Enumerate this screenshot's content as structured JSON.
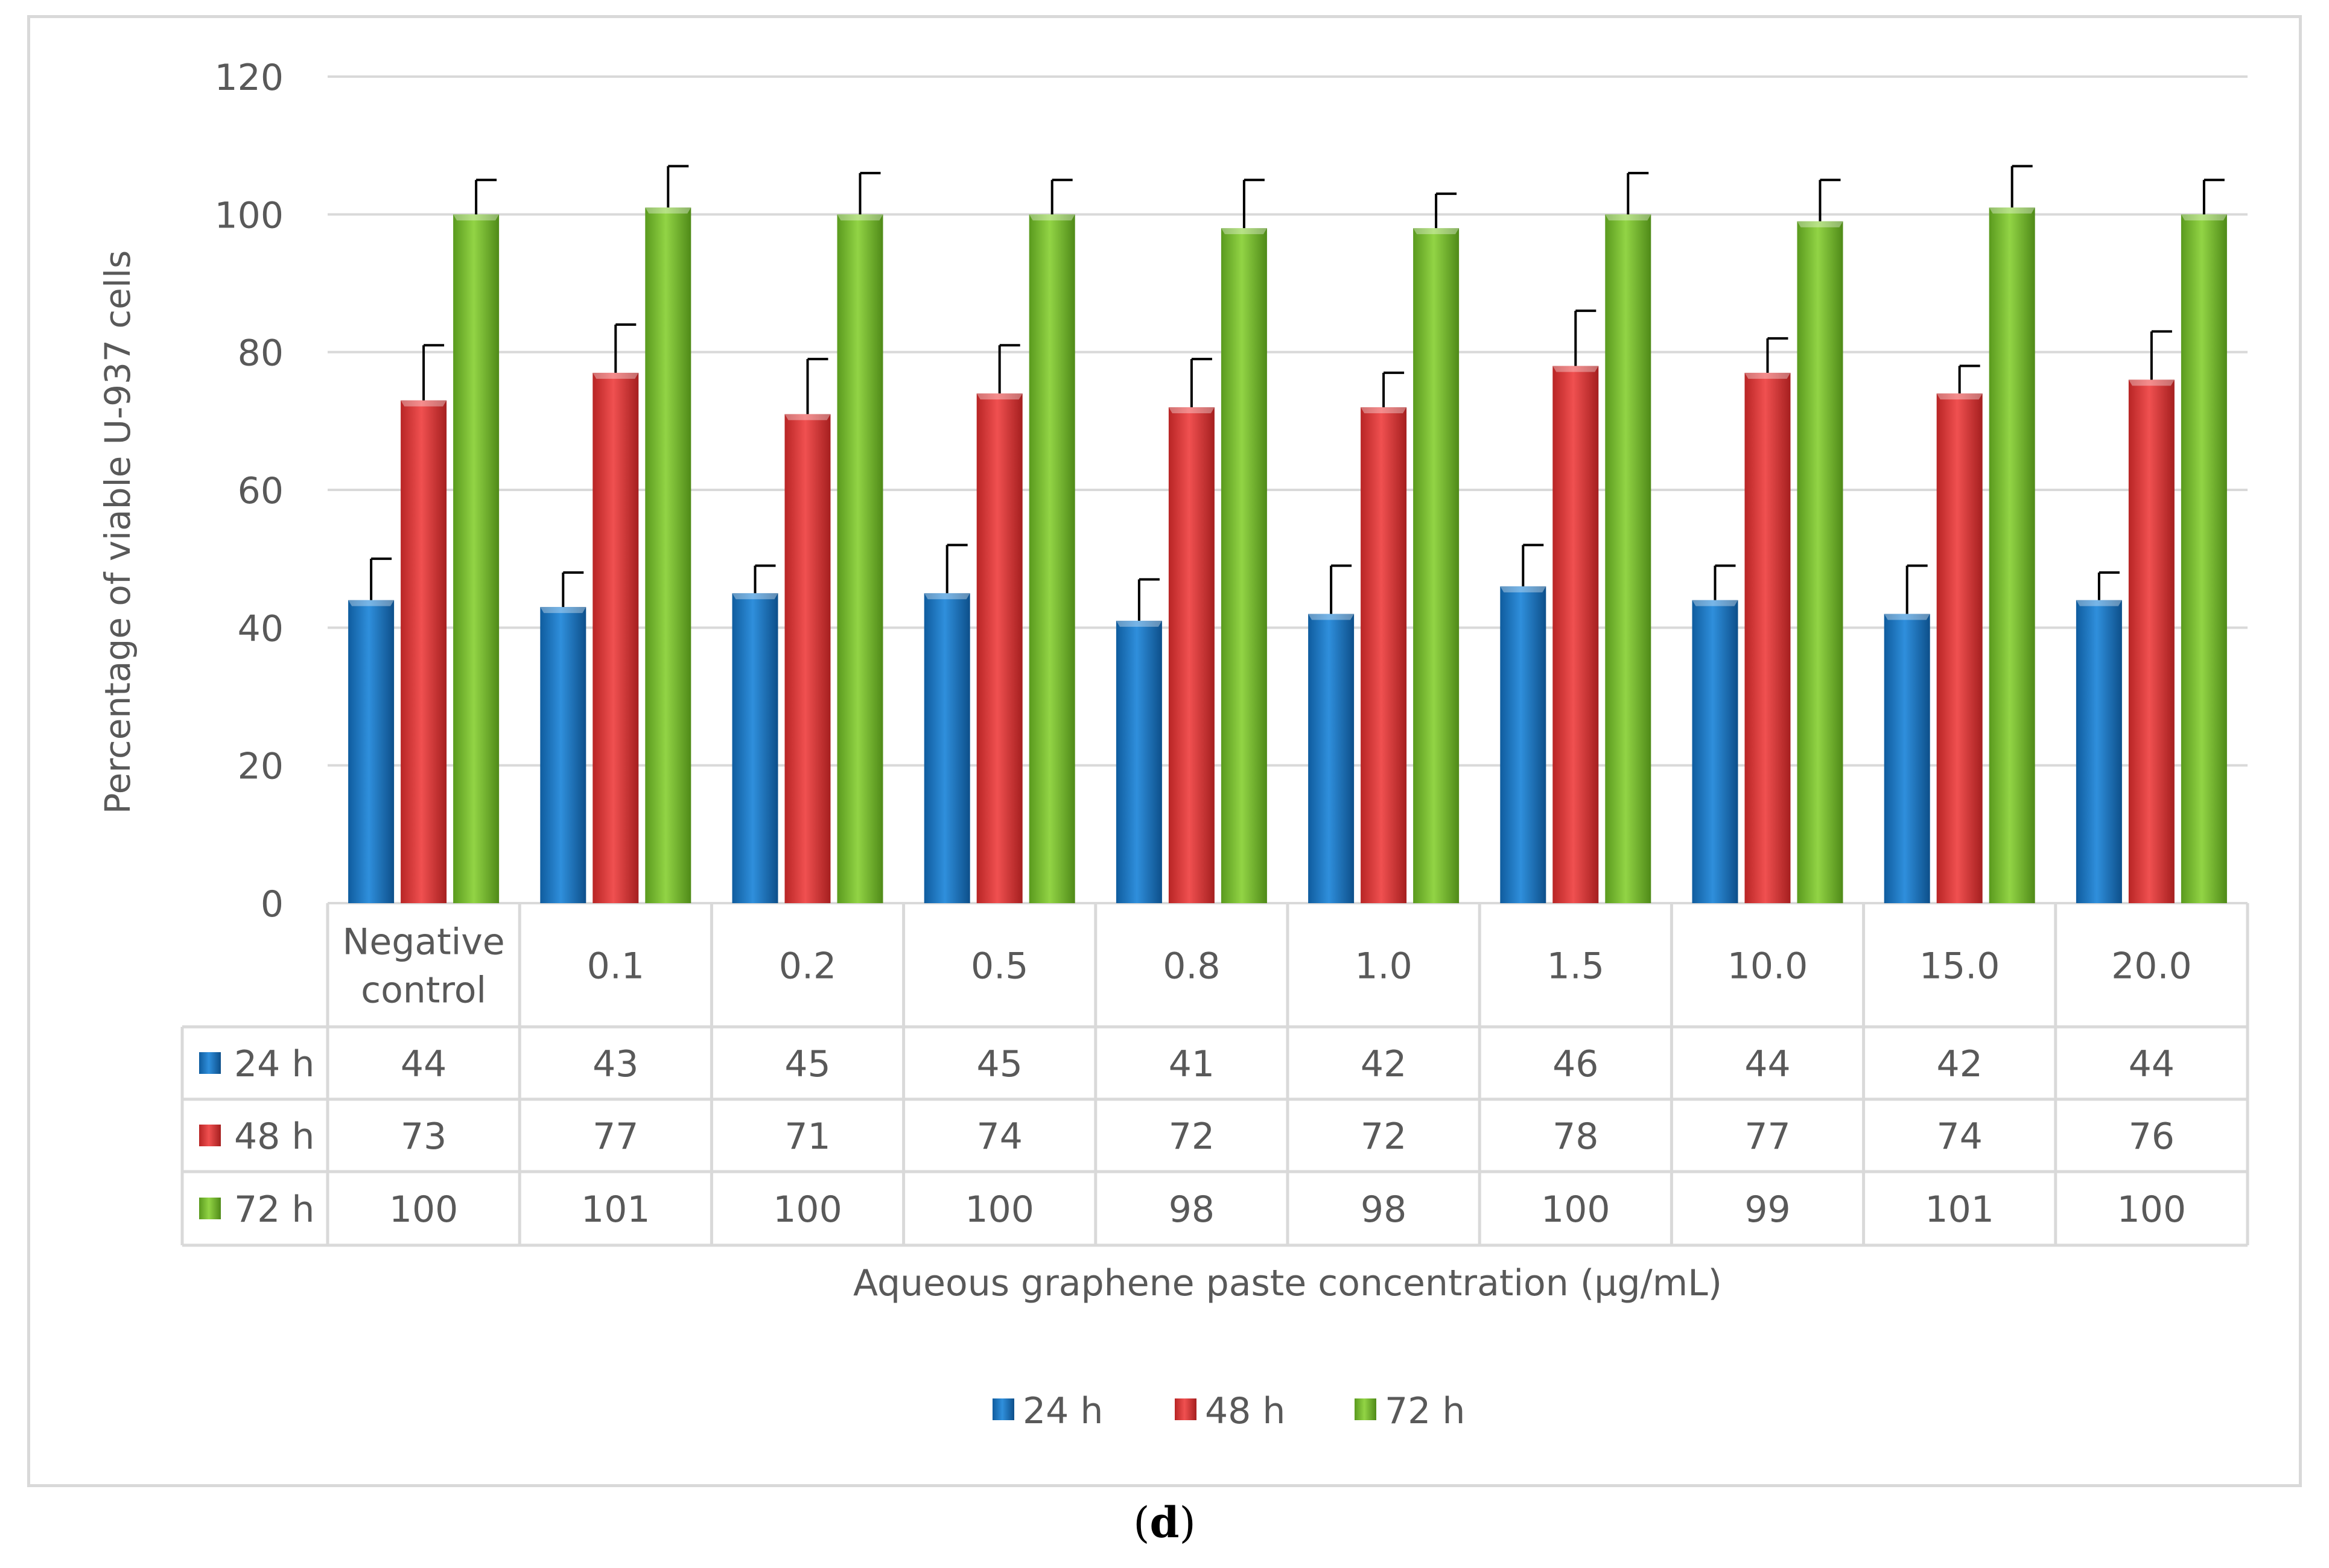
{
  "chart_data": {
    "type": "bar",
    "title": "",
    "ylabel": "Percentage of viable U-937 cells",
    "xlabel": "Aqueous graphene paste concentration (µg/mL)",
    "ylim": [
      0,
      120
    ],
    "yticks": [
      0,
      20,
      40,
      60,
      80,
      100,
      120
    ],
    "grid": true,
    "legend_position": "bottom",
    "categories": [
      [
        "Negative",
        "control"
      ],
      [
        "0.1"
      ],
      [
        "0.2"
      ],
      [
        "0.5"
      ],
      [
        "0.8"
      ],
      [
        "1.0"
      ],
      [
        "1.5"
      ],
      [
        "10.0"
      ],
      [
        "15.0"
      ],
      [
        "20.0"
      ]
    ],
    "series": [
      {
        "name": "24 h",
        "color": "#1f77c4",
        "values": [
          44,
          43,
          45,
          45,
          41,
          42,
          46,
          44,
          42,
          44
        ],
        "errors": [
          6,
          5,
          4,
          7,
          6,
          7,
          6,
          5,
          7,
          4
        ]
      },
      {
        "name": "48 h",
        "color": "#e53a3a",
        "values": [
          73,
          77,
          71,
          74,
          72,
          72,
          78,
          77,
          74,
          76
        ],
        "errors": [
          8,
          7,
          8,
          7,
          7,
          5,
          8,
          5,
          4,
          7
        ]
      },
      {
        "name": "72 h",
        "color": "#7cc233",
        "values": [
          100,
          101,
          100,
          100,
          98,
          98,
          100,
          99,
          101,
          100
        ],
        "errors": [
          5,
          6,
          6,
          5,
          7,
          5,
          6,
          6,
          6,
          5
        ]
      }
    ],
    "table_values_text": [
      [
        "44",
        "43",
        "45",
        "45",
        "41",
        "42",
        "46",
        "44",
        "42",
        "44"
      ],
      [
        "73",
        "77",
        "71",
        "74",
        "72",
        "72",
        "78",
        "77",
        "74",
        "76"
      ],
      [
        "100",
        "101",
        "100",
        "100",
        "98",
        "98",
        "100",
        "99",
        "101",
        "100"
      ]
    ]
  },
  "figure_label": {
    "open": "(",
    "letter": "d",
    "close": ")"
  }
}
